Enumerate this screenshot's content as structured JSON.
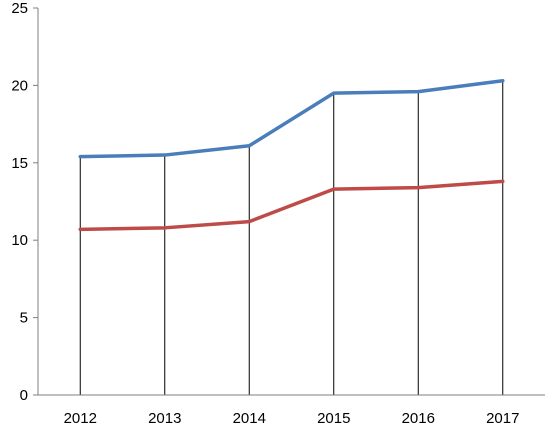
{
  "chart_data": {
    "type": "line",
    "categories": [
      "2012",
      "2013",
      "2014",
      "2015",
      "2016",
      "2017"
    ],
    "series": [
      {
        "values": [
          15.4,
          15.5,
          16.1,
          19.5,
          19.6,
          20.3
        ],
        "color": "#4a7ebb"
      },
      {
        "values": [
          10.7,
          10.8,
          11.2,
          13.3,
          13.4,
          13.8
        ],
        "color": "#be4b48"
      }
    ],
    "ylim": [
      0,
      25
    ],
    "yticks": [
      0,
      5,
      10,
      15,
      20,
      25
    ],
    "drop_lines": true,
    "grid": false,
    "legend": false
  }
}
